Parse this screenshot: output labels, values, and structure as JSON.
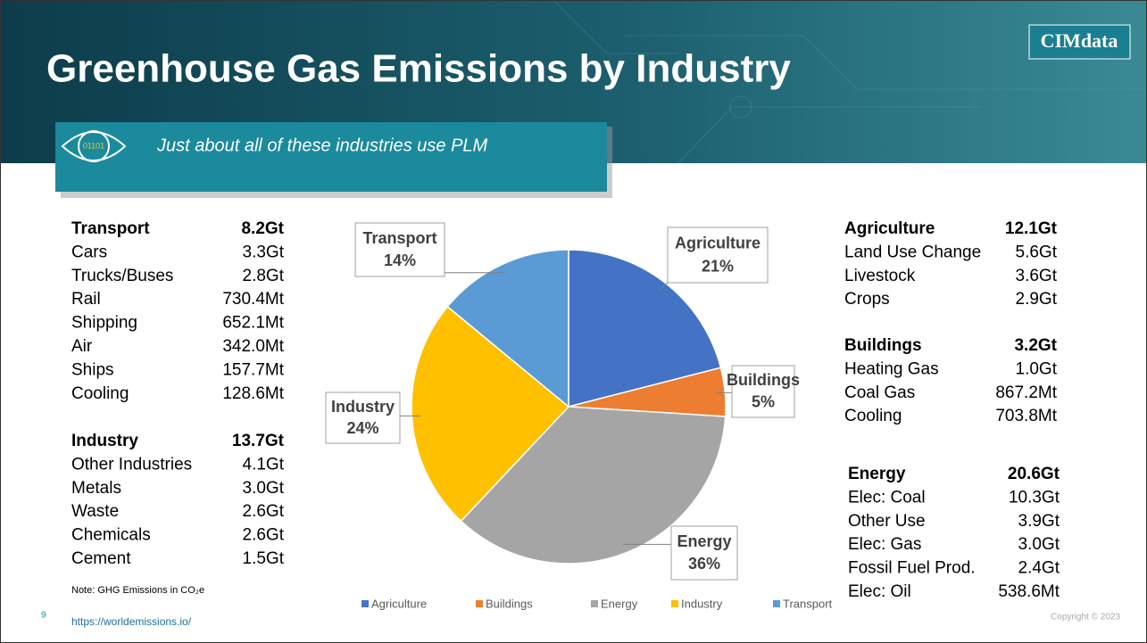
{
  "slide": {
    "title": "Greenhouse Gas Emissions by Industry",
    "subtitle": "Just about all of these industries use PLM",
    "logo": "CIMdata",
    "page_number": "9",
    "source": "https://worldemissions.io/",
    "note": "Note: GHG Emissions in CO₂e",
    "copyright": "Copyright © 2023"
  },
  "tables": [
    {
      "name": "Transport",
      "total": "8.2Gt",
      "rows": [
        {
          "label": "Cars",
          "value": "3.3Gt"
        },
        {
          "label": "Trucks/Buses",
          "value": "2.8Gt"
        },
        {
          "label": "Rail",
          "value": "730.4Mt"
        },
        {
          "label": "Shipping",
          "value": "652.1Mt"
        },
        {
          "label": "Air",
          "value": "342.0Mt"
        },
        {
          "label": "Ships",
          "value": "157.7Mt"
        },
        {
          "label": "Cooling",
          "value": "128.6Mt"
        }
      ]
    },
    {
      "name": "Industry",
      "total": "13.7Gt",
      "rows": [
        {
          "label": "Other Industries",
          "value": "4.1Gt"
        },
        {
          "label": "Metals",
          "value": "3.0Gt"
        },
        {
          "label": "Waste",
          "value": "2.6Gt"
        },
        {
          "label": "Chemicals",
          "value": "2.6Gt"
        },
        {
          "label": "Cement",
          "value": "1.5Gt"
        }
      ]
    },
    {
      "name": "Agriculture",
      "total": "12.1Gt",
      "rows": [
        {
          "label": "Land Use Change",
          "value": "5.6Gt"
        },
        {
          "label": "Livestock",
          "value": "3.6Gt"
        },
        {
          "label": "Crops",
          "value": "2.9Gt"
        }
      ]
    },
    {
      "name": "Buildings",
      "total": "3.2Gt",
      "rows": [
        {
          "label": "Heating Gas",
          "value": "1.0Gt"
        },
        {
          "label": "Coal Gas",
          "value": "867.2Mt"
        },
        {
          "label": "Cooling",
          "value": "703.8Mt"
        }
      ]
    },
    {
      "name": "Energy",
      "total": "20.6Gt",
      "rows": [
        {
          "label": "Elec: Coal",
          "value": "10.3Gt"
        },
        {
          "label": "Other Use",
          "value": "3.9Gt"
        },
        {
          "label": "Elec: Gas",
          "value": "3.0Gt"
        },
        {
          "label": "Fossil Fuel Prod.",
          "value": "2.4Gt"
        },
        {
          "label": "Elec: Oil",
          "value": "538.6Mt"
        }
      ]
    }
  ],
  "chart_data": {
    "type": "pie",
    "categories": [
      "Agriculture",
      "Buildings",
      "Energy",
      "Industry",
      "Transport"
    ],
    "values": [
      21,
      5,
      36,
      24,
      14
    ],
    "value_labels": [
      "21%",
      "5%",
      "36%",
      "24%",
      "14%"
    ],
    "colors": [
      "#4472c4",
      "#ed7d31",
      "#a5a5a5",
      "#ffc000",
      "#5b9bd5"
    ],
    "legend": "bottom"
  }
}
